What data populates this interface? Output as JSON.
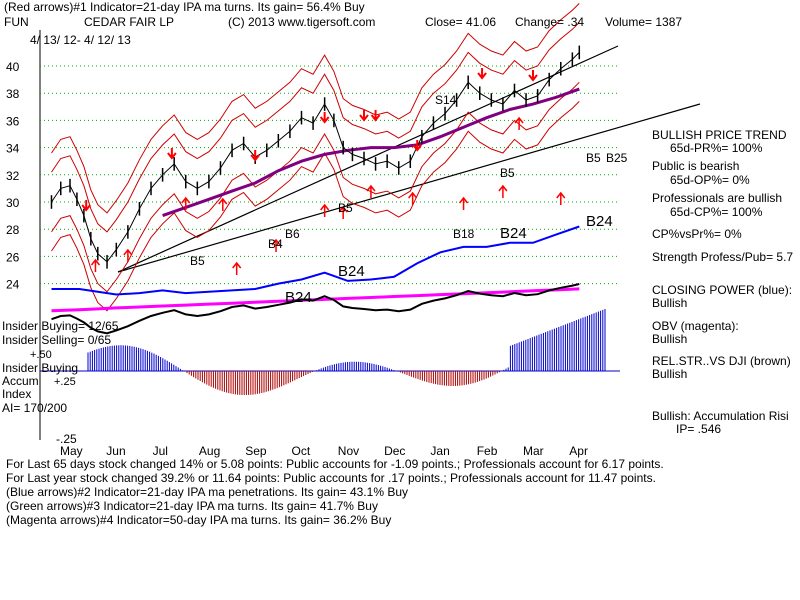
{
  "header": {
    "line1": "(Red arrows)#1 Indicator=21-day IPA ma turns. Its gain= 56.4% Buy",
    "ticker": "FUN",
    "company": "CEDAR FAIR LP",
    "copyright": "(C) 2013 www.tigersoft.com",
    "close": "Close= 41.06",
    "change": "Change= .34",
    "volume": "Volume= 1387",
    "date_range": "4/ 13/ 12- 4/ 12/ 13"
  },
  "right_panel": {
    "title": "BULLISH PRICE TREND",
    "pr": "65d-PR%= 100%",
    "public": "Public is bearish",
    "op": "65d-OP%= 0%",
    "professionals": "Professionals are bullish",
    "cp": "65d-CP%= 100%",
    "cpvspr": "CP%vsPr%= 0%",
    "strength": "Strength Profess/Pub= 5.7",
    "closing_power": "CLOSING POWER (blue):",
    "closing_power_val": "Bullish",
    "obv": "OBV (magenta):",
    "obv_val": "Bullish",
    "relstr": "REL.STR..VS DJI (brown)",
    "relstr_val": "Bullish",
    "accum": "Bullish: Accumulation Risi",
    "ip": "IP= .546"
  },
  "left_labels": {
    "insider_buying": "Insider Buying= 12/65",
    "insider_selling": "Insider Selling= 0/65",
    "insider_buying2": "Insider Buying",
    "accum": "Accum",
    "index": "Index",
    "ai": "AI= 170/200",
    "plus50": "+.50",
    "plus25": "+.25",
    "minus25": "-.25"
  },
  "footer": {
    "l1": "For Last 65 days stock changed  14% or  5.08 points:  Public accounts for -1.09 points.;  Professionals account for  6.17 points.",
    "l2": "For Last year stock changed  39.2% or  11.64 points:  Public accounts for  .17 points.;  Professionals account for  11.47 points.",
    "l3": "(Blue arrows)#2 Indicator=21-day IPA ma penetrations. Its gain= 43.1% Buy",
    "l4": "(Green arrows)#3 Indicator=21-day IPA ma turns. Its gain= 41.7% Buy",
    "l5": "(Magenta arrows)#4 Indicator=50-day IPA ma turns. Its gain= 36.2% Buy"
  },
  "annotations": {
    "s14": "S14",
    "b5a": "B5",
    "b4": "B4",
    "b6": "B6",
    "b5b": "B5",
    "b18": "B18",
    "b24a": "B24",
    "b5c": "B5",
    "b5d": "B5",
    "b25": "B25",
    "b24b": "B24",
    "b24c": "B24",
    "b24d": "B24"
  },
  "colors": {
    "price": "#000000",
    "band": "#cc0000",
    "ma50": "#800080",
    "closing_power": "#0000ff",
    "obv": "#ff00ff",
    "accum_bars": "#0000cc",
    "negative_bars": "#aa0000",
    "grid": "#00aa00",
    "arrow": "#ff0000"
  },
  "chart_data": {
    "type": "line",
    "title": "CEDAR FAIR LP (FUN)",
    "x_ticks": [
      "May",
      "Jun",
      "Jul",
      "Aug",
      "Sep",
      "Oct",
      "Nov",
      "Dec",
      "Jan",
      "Feb",
      "Mar",
      "Apr"
    ],
    "y_ticks": [
      24,
      26,
      28,
      30,
      32,
      34,
      36,
      38,
      40
    ],
    "ylim": [
      23,
      42
    ],
    "price_points": [
      {
        "m": -0.4,
        "v": 30.0
      },
      {
        "m": -0.2,
        "v": 31.0
      },
      {
        "m": 0.0,
        "v": 31.2
      },
      {
        "m": 0.15,
        "v": 30.2
      },
      {
        "m": 0.3,
        "v": 29.0
      },
      {
        "m": 0.45,
        "v": 27.3
      },
      {
        "m": 0.6,
        "v": 26.2
      },
      {
        "m": 0.8,
        "v": 25.6
      },
      {
        "m": 1.0,
        "v": 26.5
      },
      {
        "m": 1.25,
        "v": 27.8
      },
      {
        "m": 1.5,
        "v": 29.5
      },
      {
        "m": 1.75,
        "v": 31.0
      },
      {
        "m": 2.0,
        "v": 32.0
      },
      {
        "m": 2.25,
        "v": 32.8
      },
      {
        "m": 2.5,
        "v": 31.5
      },
      {
        "m": 2.75,
        "v": 31.0
      },
      {
        "m": 3.0,
        "v": 31.5
      },
      {
        "m": 3.25,
        "v": 32.5
      },
      {
        "m": 3.5,
        "v": 33.8
      },
      {
        "m": 3.75,
        "v": 34.3
      },
      {
        "m": 4.0,
        "v": 33.3
      },
      {
        "m": 4.25,
        "v": 33.8
      },
      {
        "m": 4.5,
        "v": 34.5
      },
      {
        "m": 4.75,
        "v": 35.2
      },
      {
        "m": 5.0,
        "v": 36.2
      },
      {
        "m": 5.25,
        "v": 35.8
      },
      {
        "m": 5.5,
        "v": 37.2
      },
      {
        "m": 5.7,
        "v": 36.0
      },
      {
        "m": 5.9,
        "v": 34.0
      },
      {
        "m": 6.1,
        "v": 33.5
      },
      {
        "m": 6.35,
        "v": 33.2
      },
      {
        "m": 6.6,
        "v": 32.8
      },
      {
        "m": 6.85,
        "v": 33.0
      },
      {
        "m": 7.1,
        "v": 32.5
      },
      {
        "m": 7.35,
        "v": 33.0
      },
      {
        "m": 7.6,
        "v": 34.8
      },
      {
        "m": 7.85,
        "v": 35.8
      },
      {
        "m": 8.1,
        "v": 36.5
      },
      {
        "m": 8.35,
        "v": 37.5
      },
      {
        "m": 8.6,
        "v": 38.8
      },
      {
        "m": 8.85,
        "v": 38.0
      },
      {
        "m": 9.1,
        "v": 37.5
      },
      {
        "m": 9.35,
        "v": 37.2
      },
      {
        "m": 9.6,
        "v": 38.2
      },
      {
        "m": 9.85,
        "v": 37.5
      },
      {
        "m": 10.1,
        "v": 37.8
      },
      {
        "m": 10.35,
        "v": 39.0
      },
      {
        "m": 10.6,
        "v": 39.8
      },
      {
        "m": 10.85,
        "v": 40.5
      },
      {
        "m": 11.0,
        "v": 41.0
      }
    ],
    "ma50_points": [
      {
        "m": 2.0,
        "v": 29.0
      },
      {
        "m": 2.5,
        "v": 29.6
      },
      {
        "m": 3.0,
        "v": 30.2
      },
      {
        "m": 3.5,
        "v": 30.8
      },
      {
        "m": 4.0,
        "v": 31.4
      },
      {
        "m": 4.5,
        "v": 32.3
      },
      {
        "m": 5.0,
        "v": 33.0
      },
      {
        "m": 5.5,
        "v": 33.5
      },
      {
        "m": 6.0,
        "v": 33.8
      },
      {
        "m": 6.5,
        "v": 34.0
      },
      {
        "m": 7.0,
        "v": 34.0
      },
      {
        "m": 7.5,
        "v": 34.2
      },
      {
        "m": 8.0,
        "v": 34.8
      },
      {
        "m": 8.5,
        "v": 35.5
      },
      {
        "m": 9.0,
        "v": 36.2
      },
      {
        "m": 9.5,
        "v": 36.8
      },
      {
        "m": 10.0,
        "v": 37.2
      },
      {
        "m": 10.5,
        "v": 37.7
      },
      {
        "m": 11.0,
        "v": 38.3
      }
    ],
    "cp_points": [
      {
        "m": -0.4,
        "v": 23.6
      },
      {
        "m": 0.2,
        "v": 23.6
      },
      {
        "m": 0.6,
        "v": 23.4
      },
      {
        "m": 1.0,
        "v": 23.2
      },
      {
        "m": 1.5,
        "v": 23.3
      },
      {
        "m": 2.0,
        "v": 23.5
      },
      {
        "m": 2.5,
        "v": 23.3
      },
      {
        "m": 3.0,
        "v": 23.4
      },
      {
        "m": 3.5,
        "v": 23.5
      },
      {
        "m": 4.0,
        "v": 23.6
      },
      {
        "m": 4.5,
        "v": 24.0
      },
      {
        "m": 5.0,
        "v": 24.3
      },
      {
        "m": 5.5,
        "v": 24.8
      },
      {
        "m": 6.0,
        "v": 24.2
      },
      {
        "m": 6.5,
        "v": 24.3
      },
      {
        "m": 7.0,
        "v": 24.5
      },
      {
        "m": 7.5,
        "v": 25.5
      },
      {
        "m": 8.0,
        "v": 26.3
      },
      {
        "m": 8.5,
        "v": 26.7
      },
      {
        "m": 9.0,
        "v": 26.7
      },
      {
        "m": 9.5,
        "v": 27.0
      },
      {
        "m": 10.0,
        "v": 27.0
      },
      {
        "m": 10.5,
        "v": 27.6
      },
      {
        "m": 11.0,
        "v": 28.2
      }
    ]
  }
}
